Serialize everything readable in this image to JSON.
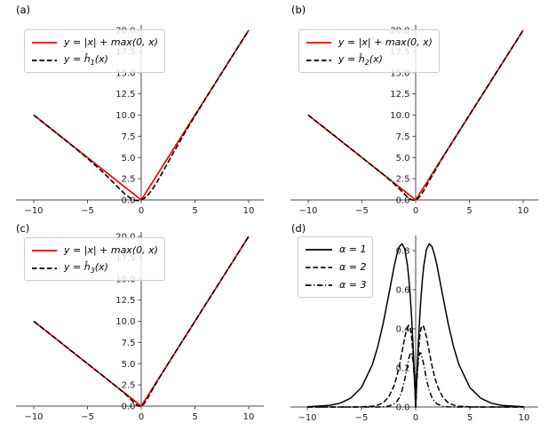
{
  "figure": {
    "background": "#ffffff",
    "colors": {
      "red_curve": "#ff0000",
      "black_curve": "#000000",
      "axis": "#4a4a4a",
      "legend_border": "#cccccc"
    },
    "panels": [
      {
        "label": "(a)",
        "legend": [
          {
            "sample": "solid-red",
            "text": "y = |x| + max(0, x)"
          },
          {
            "sample": "dashed-black",
            "prefix": "y = ĥ",
            "sub": "1",
            "suffix": "(x)"
          }
        ]
      },
      {
        "label": "(b)",
        "legend": [
          {
            "sample": "solid-red",
            "text": "y = |x| + max(0, x)"
          },
          {
            "sample": "dashed-black",
            "prefix": "y = ĥ",
            "sub": "2",
            "suffix": "(x)"
          }
        ]
      },
      {
        "label": "(c)",
        "legend": [
          {
            "sample": "solid-red",
            "text": "y = |x| + max(0, x)"
          },
          {
            "sample": "dashed-black",
            "prefix": "y = ĥ",
            "sub": "3",
            "suffix": "(x)"
          }
        ]
      },
      {
        "label": "(d)",
        "legend": [
          {
            "sample": "solid-black",
            "text": "α = 1"
          },
          {
            "sample": "dashed-black",
            "text": "α = 2"
          },
          {
            "sample": "dashdot-black",
            "text": "α = 3"
          }
        ]
      }
    ]
  },
  "chart_data": [
    {
      "id": "a",
      "type": "line",
      "title": "(a)",
      "xlabel": "",
      "ylabel": "",
      "grid": false,
      "legend_position": "upper left",
      "xlim": [
        -11.5,
        11.5
      ],
      "ylim": [
        0,
        20.5
      ],
      "x_ticks": [
        -10,
        -5,
        0,
        5,
        10
      ],
      "x_tick_labels": [
        "−10",
        "−5",
        "0",
        "5",
        "10"
      ],
      "y_ticks": [
        0,
        2.5,
        5,
        7.5,
        10,
        12.5,
        15,
        17.5,
        20
      ],
      "y_tick_labels": [
        "0.0",
        "2.5",
        "5.0",
        "7.5",
        "10.0",
        "12.5",
        "15.0",
        "17.5",
        "20.0"
      ],
      "series": [
        {
          "name": "y = |x| + max(0, x)",
          "style": "solid",
          "color": "#ff0000",
          "x": [
            -10,
            -8,
            -6,
            -5,
            -4,
            -3,
            -2.5,
            -2,
            -1.5,
            -1,
            -0.75,
            -0.5,
            -0.25,
            0,
            0.25,
            0.5,
            0.75,
            1,
            1.5,
            2,
            2.5,
            3,
            4,
            5,
            6,
            8,
            10
          ],
          "y": [
            10,
            8,
            6,
            5,
            4,
            3,
            2.5,
            2,
            1.5,
            1,
            0.75,
            0.5,
            0.25,
            0,
            0.5,
            1,
            1.5,
            2,
            3,
            4,
            5,
            6,
            8,
            10,
            12,
            16,
            20
          ]
        },
        {
          "name": "y = ĥ1(x)",
          "style": "dashed",
          "color": "#000000",
          "x": [
            -10,
            -8,
            -6,
            -5,
            -4,
            -3,
            -2.5,
            -2,
            -1.5,
            -1,
            -0.75,
            -0.5,
            -0.25,
            0,
            0.25,
            0.5,
            0.75,
            1,
            1.5,
            2,
            2.5,
            3,
            4,
            5,
            6,
            8,
            10
          ],
          "y": [
            9.996,
            7.992,
            5.955,
            4.9,
            3.784,
            2.573,
            1.931,
            1.285,
            0.679,
            0.193,
            0.028,
            -0.066,
            -0.078,
            0,
            0.172,
            0.434,
            0.778,
            1.193,
            2.179,
            3.285,
            4.431,
            5.573,
            7.784,
            9.9,
            11.955,
            15.992,
            19.996
          ]
        }
      ]
    },
    {
      "id": "b",
      "type": "line",
      "title": "(b)",
      "xlabel": "",
      "ylabel": "",
      "grid": false,
      "legend_position": "upper left",
      "xlim": [
        -11.5,
        11.5
      ],
      "ylim": [
        0,
        20.5
      ],
      "x_ticks": [
        -10,
        -5,
        0,
        5,
        10
      ],
      "x_tick_labels": [
        "−10",
        "−5",
        "0",
        "5",
        "10"
      ],
      "y_ticks": [
        0,
        2.5,
        5,
        7.5,
        10,
        12.5,
        15,
        17.5,
        20
      ],
      "y_tick_labels": [
        "0.0",
        "2.5",
        "5.0",
        "7.5",
        "10.0",
        "12.5",
        "15.0",
        "17.5",
        "20.0"
      ],
      "series": [
        {
          "name": "y = |x| + max(0, x)",
          "style": "solid",
          "color": "#ff0000",
          "x": [
            -10,
            -8,
            -6,
            -5,
            -4,
            -3,
            -2.5,
            -2,
            -1.5,
            -1,
            -0.75,
            -0.5,
            -0.25,
            0,
            0.25,
            0.5,
            0.75,
            1,
            1.5,
            2,
            2.5,
            3,
            4,
            5,
            6,
            8,
            10
          ],
          "y": [
            10,
            8,
            6,
            5,
            4,
            3,
            2.5,
            2,
            1.5,
            1,
            0.75,
            0.5,
            0.25,
            0,
            0.5,
            1,
            1.5,
            2,
            3,
            4,
            5,
            6,
            8,
            10,
            12,
            16,
            20
          ]
        },
        {
          "name": "y = ĥ2(x)",
          "style": "dashed",
          "color": "#000000",
          "x": [
            -10,
            -8,
            -6,
            -5,
            -4,
            -3,
            -2.5,
            -2,
            -1.5,
            -1,
            -0.75,
            -0.5,
            -0.25,
            0,
            0.25,
            0.5,
            0.75,
            1,
            1.5,
            2,
            2.5,
            3,
            4,
            5,
            6,
            8,
            10
          ],
          "y": [
            10,
            8,
            6,
            4.999,
            3.996,
            2.978,
            2.45,
            1.892,
            1.287,
            0.642,
            0.34,
            0.097,
            -0.033,
            0,
            0.217,
            0.597,
            1.09,
            1.642,
            2.787,
            3.892,
            4.95,
            5.978,
            7.996,
            9.999,
            12,
            16,
            20
          ]
        }
      ]
    },
    {
      "id": "c",
      "type": "line",
      "title": "(c)",
      "xlabel": "",
      "ylabel": "",
      "grid": false,
      "legend_position": "upper left",
      "xlim": [
        -11.5,
        11.5
      ],
      "ylim": [
        0,
        20.5
      ],
      "x_ticks": [
        -10,
        -5,
        0,
        5,
        10
      ],
      "x_tick_labels": [
        "−10",
        "−5",
        "0",
        "5",
        "10"
      ],
      "y_ticks": [
        0,
        2.5,
        5,
        7.5,
        10,
        12.5,
        15,
        17.5,
        20
      ],
      "y_tick_labels": [
        "0.0",
        "2.5",
        "5.0",
        "7.5",
        "10.0",
        "12.5",
        "15.0",
        "17.5",
        "20.0"
      ],
      "series": [
        {
          "name": "y = |x| + max(0, x)",
          "style": "solid",
          "color": "#ff0000",
          "x": [
            -10,
            -8,
            -6,
            -5,
            -4,
            -3,
            -2.5,
            -2,
            -1.5,
            -1,
            -0.75,
            -0.5,
            -0.25,
            0,
            0.25,
            0.5,
            0.75,
            1,
            1.5,
            2,
            2.5,
            3,
            4,
            5,
            6,
            8,
            10
          ],
          "y": [
            10,
            8,
            6,
            5,
            4,
            3,
            2.5,
            2,
            1.5,
            1,
            0.75,
            0.5,
            0.25,
            0,
            0.5,
            1,
            1.5,
            2,
            3,
            4,
            5,
            6,
            8,
            10,
            12,
            16,
            20
          ]
        },
        {
          "name": "y = ĥ3(x)",
          "style": "dashed",
          "color": "#000000",
          "x": [
            -10,
            -8,
            -6,
            -5,
            -4,
            -3,
            -2.5,
            -2,
            -1.5,
            -1,
            -0.75,
            -0.5,
            -0.25,
            0,
            0.25,
            0.5,
            0.75,
            1,
            1.5,
            2,
            2.5,
            3,
            4,
            5,
            6,
            8,
            10
          ],
          "y": [
            10,
            8,
            6,
            5,
            4,
            2.999,
            2.496,
            1.985,
            1.45,
            0.858,
            0.536,
            0.226,
            0.009,
            0,
            0.259,
            0.726,
            1.285,
            1.858,
            2.951,
            3.985,
            4.996,
            5.999,
            8,
            10,
            12,
            16,
            20
          ]
        }
      ]
    },
    {
      "id": "d",
      "type": "line",
      "title": "(d)",
      "xlabel": "",
      "ylabel": "",
      "grid": false,
      "legend_position": "upper left",
      "xlim": [
        -11.5,
        11.5
      ],
      "ylim": [
        0,
        0.88
      ],
      "x_ticks": [
        -10,
        -5,
        0,
        5,
        10
      ],
      "x_tick_labels": [
        "−10",
        "−5",
        "0",
        "5",
        "10"
      ],
      "y_ticks": [
        0,
        0.2,
        0.4,
        0.6,
        0.8
      ],
      "y_tick_labels": [
        "0.0",
        "0.2",
        "0.4",
        "0.6",
        "0.8"
      ],
      "series": [
        {
          "name": "α = 1",
          "style": "solid",
          "color": "#000000",
          "x": [
            -10,
            -8,
            -7,
            -6,
            -5,
            -4,
            -3.5,
            -3,
            -2.5,
            -2,
            -1.75,
            -1.5,
            -1.25,
            -1,
            -0.75,
            -0.625,
            -0.5,
            -0.4,
            -0.25,
            -0.1,
            0,
            0.1,
            0.25,
            0.4,
            0.5,
            0.625,
            0.75,
            1,
            1.25,
            1.5,
            1.75,
            2,
            2.5,
            3,
            3.5,
            4,
            5,
            6,
            7,
            8,
            10
          ],
          "y": [
            0.001,
            0.008,
            0.019,
            0.045,
            0.1,
            0.216,
            0.308,
            0.427,
            0.569,
            0.715,
            0.777,
            0.821,
            0.835,
            0.807,
            0.722,
            0.654,
            0.566,
            0.482,
            0.328,
            0.143,
            0,
            0.143,
            0.328,
            0.482,
            0.566,
            0.654,
            0.722,
            0.807,
            0.835,
            0.821,
            0.777,
            0.715,
            0.569,
            0.427,
            0.308,
            0.216,
            0.1,
            0.045,
            0.019,
            0.008,
            0.001
          ]
        },
        {
          "name": "α = 2",
          "style": "dashed",
          "color": "#000000",
          "x": [
            -10,
            -8,
            -7,
            -6,
            -5,
            -4,
            -3.5,
            -3,
            -2.5,
            -2,
            -1.75,
            -1.5,
            -1.25,
            -1,
            -0.75,
            -0.625,
            -0.5,
            -0.4,
            -0.25,
            -0.1,
            0,
            0.1,
            0.25,
            0.4,
            0.5,
            0.625,
            0.75,
            1,
            1.25,
            1.5,
            1.75,
            2,
            2.5,
            3,
            3.5,
            4,
            5,
            6,
            7,
            8,
            10
          ],
          "y": [
            0,
            0,
            0,
            0,
            0.001,
            0.004,
            0.01,
            0.022,
            0.05,
            0.108,
            0.154,
            0.213,
            0.284,
            0.358,
            0.41,
            0.418,
            0.403,
            0.372,
            0.283,
            0.135,
            0,
            0.135,
            0.283,
            0.372,
            0.403,
            0.418,
            0.41,
            0.358,
            0.284,
            0.213,
            0.154,
            0.108,
            0.05,
            0.022,
            0.01,
            0.004,
            0.001,
            0,
            0,
            0,
            0
          ]
        },
        {
          "name": "α = 3",
          "style": "dashdot",
          "color": "#000000",
          "x": [
            -10,
            -8,
            -7,
            -6,
            -5,
            -4,
            -3.5,
            -3,
            -2.5,
            -2,
            -1.75,
            -1.5,
            -1.25,
            -1,
            -0.75,
            -0.625,
            -0.5,
            -0.4,
            -0.25,
            -0.1,
            0,
            0.1,
            0.25,
            0.4,
            0.5,
            0.625,
            0.75,
            1,
            1.25,
            1.5,
            1.75,
            2,
            2.5,
            3,
            3.5,
            4,
            5,
            6,
            7,
            8,
            10
          ],
          "y": [
            0,
            0,
            0,
            0,
            0,
            0,
            0,
            0.001,
            0.004,
            0.015,
            0.027,
            0.049,
            0.086,
            0.142,
            0.215,
            0.249,
            0.274,
            0.278,
            0.241,
            0.128,
            0,
            0.128,
            0.241,
            0.278,
            0.274,
            0.249,
            0.215,
            0.142,
            0.086,
            0.049,
            0.027,
            0.015,
            0.004,
            0.001,
            0,
            0,
            0,
            0,
            0,
            0,
            0
          ]
        }
      ]
    }
  ]
}
